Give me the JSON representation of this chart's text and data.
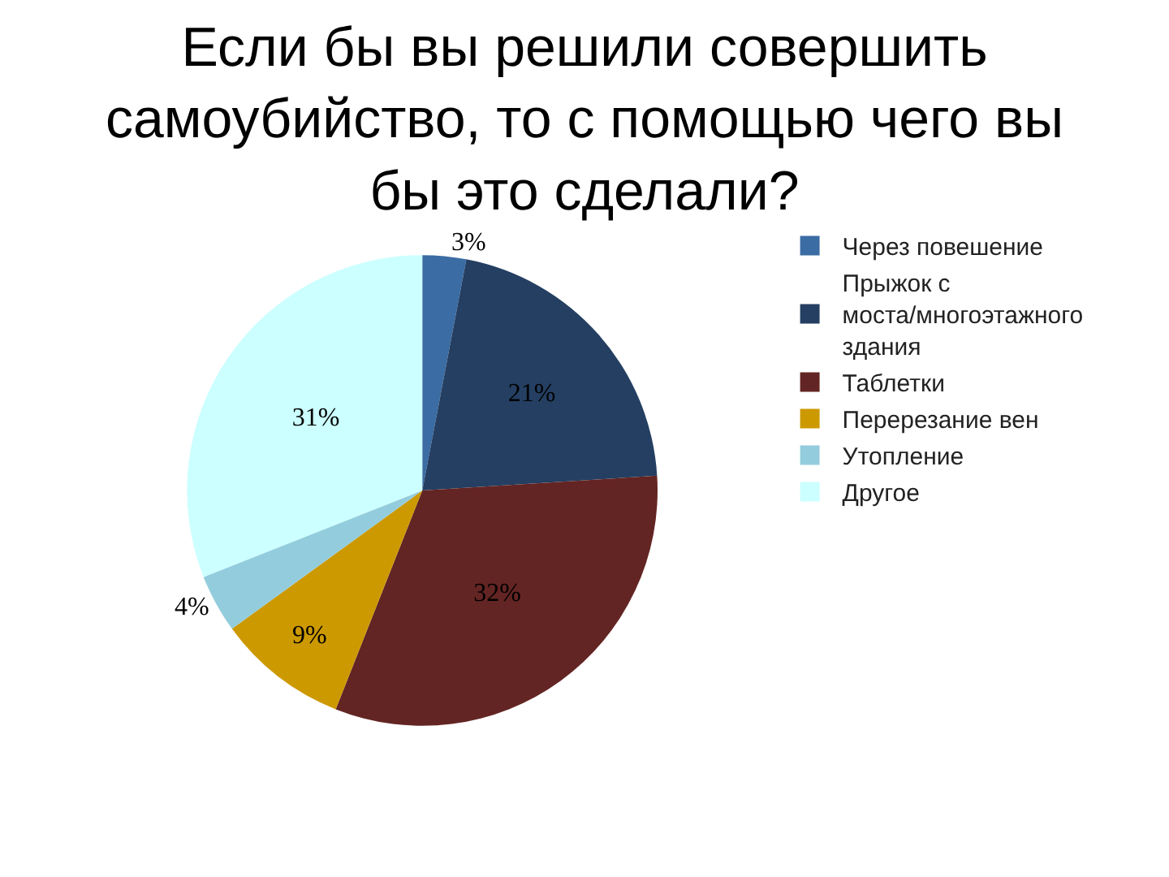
{
  "chart_data": {
    "type": "pie",
    "title": "Если бы вы решили совершить самоубийство, то с помощью чего вы бы это сделали?",
    "categories": [
      "Через повешение",
      "Прыжок с моста/многоэтажного здания",
      "Таблетки",
      "Перерезание вен",
      "Утопление",
      "Другое"
    ],
    "values": [
      3,
      21,
      32,
      9,
      4,
      31
    ],
    "value_labels": [
      "3%",
      "21%",
      "32%",
      "9%",
      "4%",
      "31%"
    ],
    "colors": [
      "#3b6ca3",
      "#243f62",
      "#632523",
      "#cc9900",
      "#93cddd",
      "#ccffff"
    ],
    "legend": "right"
  }
}
